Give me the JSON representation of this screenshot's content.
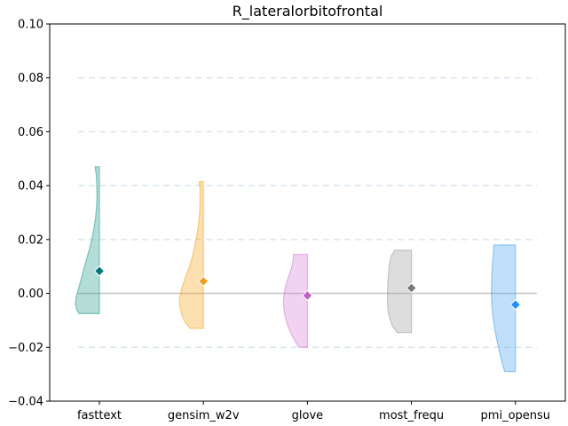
{
  "chart_data": {
    "type": "violin",
    "title": "R_lateralorbitofrontal",
    "xlabel": "",
    "ylabel": "",
    "categories": [
      "fasttext",
      "gensim_w2v",
      "glove",
      "most_frequ",
      "pmi_opensu"
    ],
    "ylim": [
      -0.04,
      0.1
    ],
    "yticks": [
      -0.04,
      -0.02,
      0.0,
      0.02,
      0.04,
      0.06,
      0.08,
      0.1
    ],
    "ytick_labels": [
      "−0.04",
      "−0.02",
      "0.00",
      "0.02",
      "0.04",
      "0.06",
      "0.08",
      "0.10"
    ],
    "grid": "horizontal dashed",
    "reference_line": 0.0,
    "series": [
      {
        "category": "fasttext",
        "mean": 0.0083,
        "min": -0.0075,
        "max": 0.047,
        "density": [
          [
            -0.0075,
            0.85
          ],
          [
            -0.006,
            0.95
          ],
          [
            -0.004,
            1.0
          ],
          [
            -0.002,
            0.98
          ],
          [
            0.0,
            0.93
          ],
          [
            0.004,
            0.8
          ],
          [
            0.008,
            0.68
          ],
          [
            0.012,
            0.56
          ],
          [
            0.016,
            0.43
          ],
          [
            0.02,
            0.32
          ],
          [
            0.024,
            0.23
          ],
          [
            0.028,
            0.16
          ],
          [
            0.032,
            0.12
          ],
          [
            0.036,
            0.1
          ],
          [
            0.04,
            0.11
          ],
          [
            0.044,
            0.13
          ],
          [
            0.047,
            0.18
          ]
        ],
        "color": "#2a9d8f",
        "marker_color": "#00787a"
      },
      {
        "category": "gensim_w2v",
        "mean": 0.0045,
        "min": -0.013,
        "max": 0.0415,
        "density": [
          [
            -0.013,
            0.55
          ],
          [
            -0.011,
            0.75
          ],
          [
            -0.008,
            0.9
          ],
          [
            -0.005,
            0.98
          ],
          [
            -0.002,
            1.0
          ],
          [
            0.002,
            0.9
          ],
          [
            0.006,
            0.75
          ],
          [
            0.01,
            0.58
          ],
          [
            0.014,
            0.45
          ],
          [
            0.018,
            0.35
          ],
          [
            0.022,
            0.26
          ],
          [
            0.026,
            0.2
          ],
          [
            0.03,
            0.16
          ],
          [
            0.034,
            0.14
          ],
          [
            0.038,
            0.14
          ],
          [
            0.0415,
            0.18
          ]
        ],
        "color": "#f5a623",
        "marker_color": "#f0a020"
      },
      {
        "category": "glove",
        "mean": -0.0008,
        "min": -0.02,
        "max": 0.0145,
        "density": [
          [
            -0.02,
            0.35
          ],
          [
            -0.018,
            0.5
          ],
          [
            -0.015,
            0.68
          ],
          [
            -0.012,
            0.82
          ],
          [
            -0.009,
            0.92
          ],
          [
            -0.006,
            0.98
          ],
          [
            -0.003,
            1.0
          ],
          [
            0.0,
            0.97
          ],
          [
            0.003,
            0.9
          ],
          [
            0.006,
            0.8
          ],
          [
            0.009,
            0.68
          ],
          [
            0.012,
            0.6
          ],
          [
            0.0145,
            0.58
          ]
        ],
        "color": "#d67ed6",
        "marker_color": "#c060c8"
      },
      {
        "category": "most_frequ",
        "mean": 0.002,
        "min": -0.0145,
        "max": 0.016,
        "density": [
          [
            -0.0145,
            0.6
          ],
          [
            -0.012,
            0.8
          ],
          [
            -0.009,
            0.92
          ],
          [
            -0.006,
            0.98
          ],
          [
            -0.003,
            1.0
          ],
          [
            0.0,
            1.0
          ],
          [
            0.004,
            0.98
          ],
          [
            0.008,
            0.95
          ],
          [
            0.012,
            0.9
          ],
          [
            0.014,
            0.84
          ],
          [
            0.016,
            0.7
          ]
        ],
        "color": "#9e9e9e",
        "marker_color": "#7a7a7a"
      },
      {
        "category": "pmi_opensu",
        "mean": -0.0042,
        "min": -0.029,
        "max": 0.018,
        "density": [
          [
            -0.029,
            0.45
          ],
          [
            -0.026,
            0.55
          ],
          [
            -0.022,
            0.66
          ],
          [
            -0.018,
            0.76
          ],
          [
            -0.014,
            0.85
          ],
          [
            -0.01,
            0.92
          ],
          [
            -0.006,
            0.97
          ],
          [
            -0.002,
            1.0
          ],
          [
            0.002,
            1.0
          ],
          [
            0.006,
            0.99
          ],
          [
            0.01,
            0.97
          ],
          [
            0.014,
            0.93
          ],
          [
            0.018,
            0.9
          ]
        ],
        "color": "#4aa3f0",
        "marker_color": "#1e90ff"
      }
    ]
  }
}
